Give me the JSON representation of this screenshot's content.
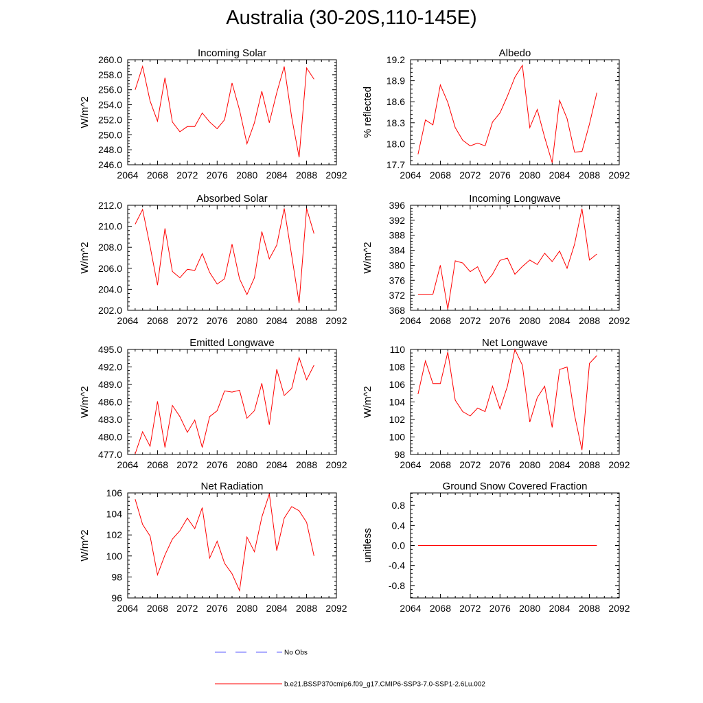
{
  "figure": {
    "title": "Australia (30-20S,110-145E)",
    "colors": {
      "model": "#ff0000",
      "obs": "#5a5aff",
      "axis": "#000000"
    }
  },
  "legend": {
    "items": [
      {
        "label": "No Obs",
        "style": "dashed",
        "color": "#5a5aff"
      },
      {
        "label": "b.e21.BSSP370cmip6.f09_g17.CMIP6-SSP3-7.0-SSP1-2.6Lu.002",
        "style": "solid",
        "color": "#ff0000"
      }
    ]
  },
  "chart_data": [
    {
      "type": "line",
      "title": "Incoming Solar",
      "ylabel": "W/m^2",
      "xlim": [
        2064,
        2092
      ],
      "ylim": [
        246,
        260
      ],
      "xticks": [
        2064,
        2068,
        2072,
        2076,
        2080,
        2084,
        2088,
        2092
      ],
      "yticks": [
        246.0,
        248.0,
        250.0,
        252.0,
        254.0,
        256.0,
        258.0,
        260.0
      ],
      "ytick_labels": [
        "246.0",
        "248.0",
        "250.0",
        "252.0",
        "254.0",
        "256.0",
        "258.0",
        "260.0"
      ],
      "series": [
        {
          "x": [
            2065,
            2066,
            2067,
            2068,
            2069,
            2070,
            2071,
            2072,
            2073,
            2074,
            2075,
            2076,
            2077,
            2078,
            2079,
            2080,
            2081,
            2082,
            2083,
            2084,
            2085,
            2086,
            2087,
            2088,
            2089
          ],
          "values": [
            256.0,
            259.1,
            254.5,
            251.8,
            257.6,
            251.7,
            250.4,
            251.1,
            251.1,
            252.9,
            251.7,
            250.8,
            252.0,
            256.9,
            253.3,
            248.8,
            251.6,
            255.8,
            251.6,
            255.6,
            259.1,
            252.3,
            247.0,
            258.9,
            257.4
          ]
        }
      ]
    },
    {
      "type": "line",
      "title": "Albedo",
      "ylabel": "% reflected",
      "xlim": [
        2064,
        2092
      ],
      "ylim": [
        17.7,
        19.2
      ],
      "xticks": [
        2064,
        2068,
        2072,
        2076,
        2080,
        2084,
        2088,
        2092
      ],
      "yticks": [
        17.7,
        18.0,
        18.3,
        18.6,
        18.9,
        19.2
      ],
      "ytick_labels": [
        "17.7",
        "18.0",
        "18.3",
        "18.6",
        "18.9",
        "19.2"
      ],
      "series": [
        {
          "x": [
            2065,
            2066,
            2067,
            2068,
            2069,
            2070,
            2071,
            2072,
            2073,
            2074,
            2075,
            2076,
            2077,
            2078,
            2079,
            2080,
            2081,
            2082,
            2083,
            2084,
            2085,
            2086,
            2087,
            2088,
            2089
          ],
          "values": [
            17.85,
            18.34,
            18.27,
            18.84,
            18.59,
            18.23,
            18.05,
            17.97,
            18.01,
            17.97,
            18.31,
            18.44,
            18.68,
            18.95,
            19.12,
            18.23,
            18.49,
            18.09,
            17.73,
            18.62,
            18.36,
            17.88,
            17.89,
            18.28,
            18.73
          ]
        }
      ]
    },
    {
      "type": "line",
      "title": "Absorbed Solar",
      "ylabel": "W/m^2",
      "xlim": [
        2064,
        2092
      ],
      "ylim": [
        202,
        212
      ],
      "xticks": [
        2064,
        2068,
        2072,
        2076,
        2080,
        2084,
        2088,
        2092
      ],
      "yticks": [
        202.0,
        204.0,
        206.0,
        208.0,
        210.0,
        212.0
      ],
      "ytick_labels": [
        "202.0",
        "204.0",
        "206.0",
        "208.0",
        "210.0",
        "212.0"
      ],
      "series": [
        {
          "x": [
            2065,
            2066,
            2067,
            2068,
            2069,
            2070,
            2071,
            2072,
            2073,
            2074,
            2075,
            2076,
            2077,
            2078,
            2079,
            2080,
            2081,
            2082,
            2083,
            2084,
            2085,
            2086,
            2087,
            2088,
            2089
          ],
          "values": [
            210.2,
            211.6,
            208.1,
            204.4,
            209.8,
            205.7,
            205.1,
            205.9,
            205.8,
            207.4,
            205.6,
            204.5,
            205.0,
            208.3,
            205.0,
            203.5,
            205.1,
            209.5,
            206.9,
            208.2,
            211.7,
            207.2,
            202.7,
            211.7,
            209.3
          ]
        }
      ]
    },
    {
      "type": "line",
      "title": "Incoming Longwave",
      "ylabel": "W/m^2",
      "xlim": [
        2064,
        2092
      ],
      "ylim": [
        368,
        396
      ],
      "xticks": [
        2064,
        2068,
        2072,
        2076,
        2080,
        2084,
        2088,
        2092
      ],
      "yticks": [
        368,
        372,
        376,
        380,
        384,
        388,
        392,
        396
      ],
      "ytick_labels": [
        "368",
        "372",
        "376",
        "380",
        "384",
        "388",
        "392",
        "396"
      ],
      "series": [
        {
          "x": [
            2065,
            2066,
            2067,
            2068,
            2069,
            2070,
            2071,
            2072,
            2073,
            2074,
            2075,
            2076,
            2077,
            2078,
            2079,
            2080,
            2081,
            2082,
            2083,
            2084,
            2085,
            2086,
            2087,
            2088,
            2089
          ],
          "values": [
            372.3,
            372.3,
            372.3,
            380.0,
            368.3,
            381.2,
            380.6,
            378.3,
            379.6,
            375.2,
            377.6,
            381.3,
            381.9,
            377.6,
            379.7,
            381.4,
            380.2,
            383.2,
            381.0,
            383.8,
            379.2,
            385.6,
            395.1,
            381.4,
            383.0
          ]
        }
      ]
    },
    {
      "type": "line",
      "title": "Emitted Longwave",
      "ylabel": "W/m^2",
      "xlim": [
        2064,
        2092
      ],
      "ylim": [
        477,
        495
      ],
      "xticks": [
        2064,
        2068,
        2072,
        2076,
        2080,
        2084,
        2088,
        2092
      ],
      "yticks": [
        477.0,
        480.0,
        483.0,
        486.0,
        489.0,
        492.0,
        495.0
      ],
      "ytick_labels": [
        "477.0",
        "480.0",
        "483.0",
        "486.0",
        "489.0",
        "492.0",
        "495.0"
      ],
      "series": [
        {
          "x": [
            2065,
            2066,
            2067,
            2068,
            2069,
            2070,
            2071,
            2072,
            2073,
            2074,
            2075,
            2076,
            2077,
            2078,
            2079,
            2080,
            2081,
            2082,
            2083,
            2084,
            2085,
            2086,
            2087,
            2088,
            2089
          ],
          "values": [
            477.1,
            480.9,
            478.4,
            486.1,
            478.2,
            485.4,
            483.5,
            480.8,
            482.9,
            478.2,
            483.5,
            484.5,
            487.9,
            487.7,
            488.0,
            483.2,
            484.5,
            489.2,
            482.1,
            491.6,
            487.1,
            488.3,
            493.6,
            489.8,
            492.3
          ]
        }
      ]
    },
    {
      "type": "line",
      "title": "Net Longwave",
      "ylabel": "W/m^2",
      "xlim": [
        2064,
        2092
      ],
      "ylim": [
        98,
        110
      ],
      "xticks": [
        2064,
        2068,
        2072,
        2076,
        2080,
        2084,
        2088,
        2092
      ],
      "yticks": [
        98,
        100,
        102,
        104,
        106,
        108,
        110
      ],
      "ytick_labels": [
        "98",
        "100",
        "102",
        "104",
        "106",
        "108",
        "110"
      ],
      "series": [
        {
          "x": [
            2065,
            2066,
            2067,
            2068,
            2069,
            2070,
            2071,
            2072,
            2073,
            2074,
            2075,
            2076,
            2077,
            2078,
            2079,
            2080,
            2081,
            2082,
            2083,
            2084,
            2085,
            2086,
            2087,
            2088,
            2089
          ],
          "values": [
            104.9,
            108.7,
            106.1,
            106.1,
            109.7,
            104.2,
            102.9,
            102.4,
            103.3,
            102.9,
            105.8,
            103.2,
            105.8,
            110.0,
            108.2,
            101.7,
            104.5,
            105.8,
            101.1,
            107.7,
            108.0,
            102.5,
            98.5,
            108.4,
            109.3
          ]
        }
      ]
    },
    {
      "type": "line",
      "title": "Net Radiation",
      "ylabel": "W/m^2",
      "xlim": [
        2064,
        2092
      ],
      "ylim": [
        96,
        106
      ],
      "xticks": [
        2064,
        2068,
        2072,
        2076,
        2080,
        2084,
        2088,
        2092
      ],
      "yticks": [
        96,
        98,
        100,
        102,
        104,
        106
      ],
      "ytick_labels": [
        "96",
        "98",
        "100",
        "102",
        "104",
        "106"
      ],
      "series": [
        {
          "x": [
            2065,
            2066,
            2067,
            2068,
            2069,
            2070,
            2071,
            2072,
            2073,
            2074,
            2075,
            2076,
            2077,
            2078,
            2079,
            2080,
            2081,
            2082,
            2083,
            2084,
            2085,
            2086,
            2087,
            2088,
            2089
          ],
          "values": [
            105.4,
            103.0,
            101.9,
            98.2,
            100.1,
            101.6,
            102.4,
            103.6,
            102.6,
            104.6,
            99.8,
            101.4,
            99.3,
            98.3,
            96.7,
            101.8,
            100.4,
            103.7,
            105.9,
            100.5,
            103.6,
            104.7,
            104.3,
            103.2,
            100.0
          ]
        }
      ]
    },
    {
      "type": "line",
      "title": "Ground Snow Covered Fraction",
      "ylabel": "unitless",
      "xlim": [
        2064,
        2092
      ],
      "ylim": [
        -1.05,
        1.05
      ],
      "xticks": [
        2064,
        2068,
        2072,
        2076,
        2080,
        2084,
        2088,
        2092
      ],
      "yticks": [
        -0.8,
        -0.4,
        0.0,
        0.4,
        0.8
      ],
      "ytick_labels": [
        "-0.8",
        "-0.4",
        "0.0",
        "0.4",
        "0.8"
      ],
      "series": [
        {
          "x": [
            2065,
            2066,
            2067,
            2068,
            2069,
            2070,
            2071,
            2072,
            2073,
            2074,
            2075,
            2076,
            2077,
            2078,
            2079,
            2080,
            2081,
            2082,
            2083,
            2084,
            2085,
            2086,
            2087,
            2088,
            2089
          ],
          "values": [
            0,
            0,
            0,
            0,
            0,
            0,
            0,
            0,
            0,
            0,
            0,
            0,
            0,
            0,
            0,
            0,
            0,
            0,
            0,
            0,
            0,
            0,
            0,
            0,
            0
          ]
        }
      ]
    }
  ]
}
